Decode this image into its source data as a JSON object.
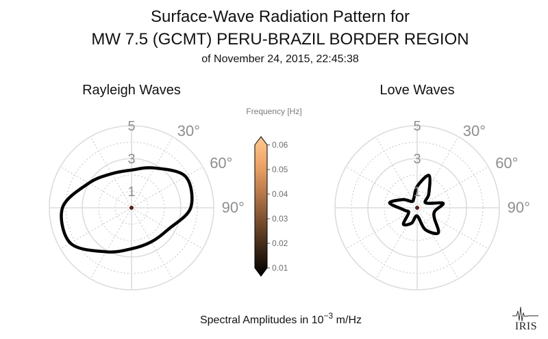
{
  "figure": {
    "title_line1": "Surface-Wave Radiation Pattern for",
    "title_line2": "MW 7.5 (GCMT) PERU-BRAZIL BORDER REGION",
    "subtitle": "of November 24, 2015, 22:45:38",
    "footer_text": "Spectral Amplitudes in 10",
    "footer_exponent": "−3",
    "footer_unit": " m/Hz",
    "logo_text": "IRIS"
  },
  "colorbar": {
    "label": "Frequency [Hz]",
    "ticks": [
      "0.06",
      "0.05",
      "0.04",
      "0.03",
      "0.02",
      "0.01"
    ],
    "range": [
      0.01,
      0.06
    ],
    "colors": [
      "#000000",
      "#3b2616",
      "#7a4f2f",
      "#b97a4b",
      "#efa468",
      "#ffc891"
    ]
  },
  "chart_data": [
    {
      "type": "polar",
      "title": "Rayleigh Waves",
      "radial_ticks": [
        "1",
        "3",
        "5"
      ],
      "radial_values": [
        1,
        3,
        5
      ],
      "rmax": 5,
      "angle_labels": [
        "30°",
        "60°",
        "90°"
      ],
      "angle_values": [
        30,
        60,
        90
      ],
      "pattern": {
        "color": "#000000",
        "azimuth_deg": [
          0,
          30,
          60,
          90,
          120,
          150,
          180,
          210,
          240,
          270,
          300,
          330
        ],
        "amplitude": [
          2.3,
          2.8,
          3.8,
          3.6,
          2.6,
          2.4,
          2.5,
          3.1,
          4.3,
          4.2,
          3.0,
          2.4
        ]
      }
    },
    {
      "type": "polar",
      "title": "Love Waves",
      "radial_ticks": [
        "1",
        "3",
        "5"
      ],
      "radial_values": [
        1,
        3,
        5
      ],
      "rmax": 5,
      "angle_labels": [
        "30°",
        "60°",
        "90°"
      ],
      "angle_values": [
        30,
        60,
        90
      ],
      "pattern": {
        "color": "#000000",
        "azimuth_deg": [
          0,
          20,
          40,
          60,
          80,
          100,
          120,
          140,
          160,
          180,
          200,
          220,
          240,
          260,
          280,
          300,
          320,
          340
        ],
        "amplitude": [
          1.3,
          2.1,
          1.1,
          0.6,
          1.6,
          1.1,
          1.2,
          2.0,
          1.4,
          0.5,
          1.0,
          1.3,
          0.6,
          0.8,
          1.7,
          1.0,
          0.5,
          0.6
        ]
      }
    }
  ]
}
